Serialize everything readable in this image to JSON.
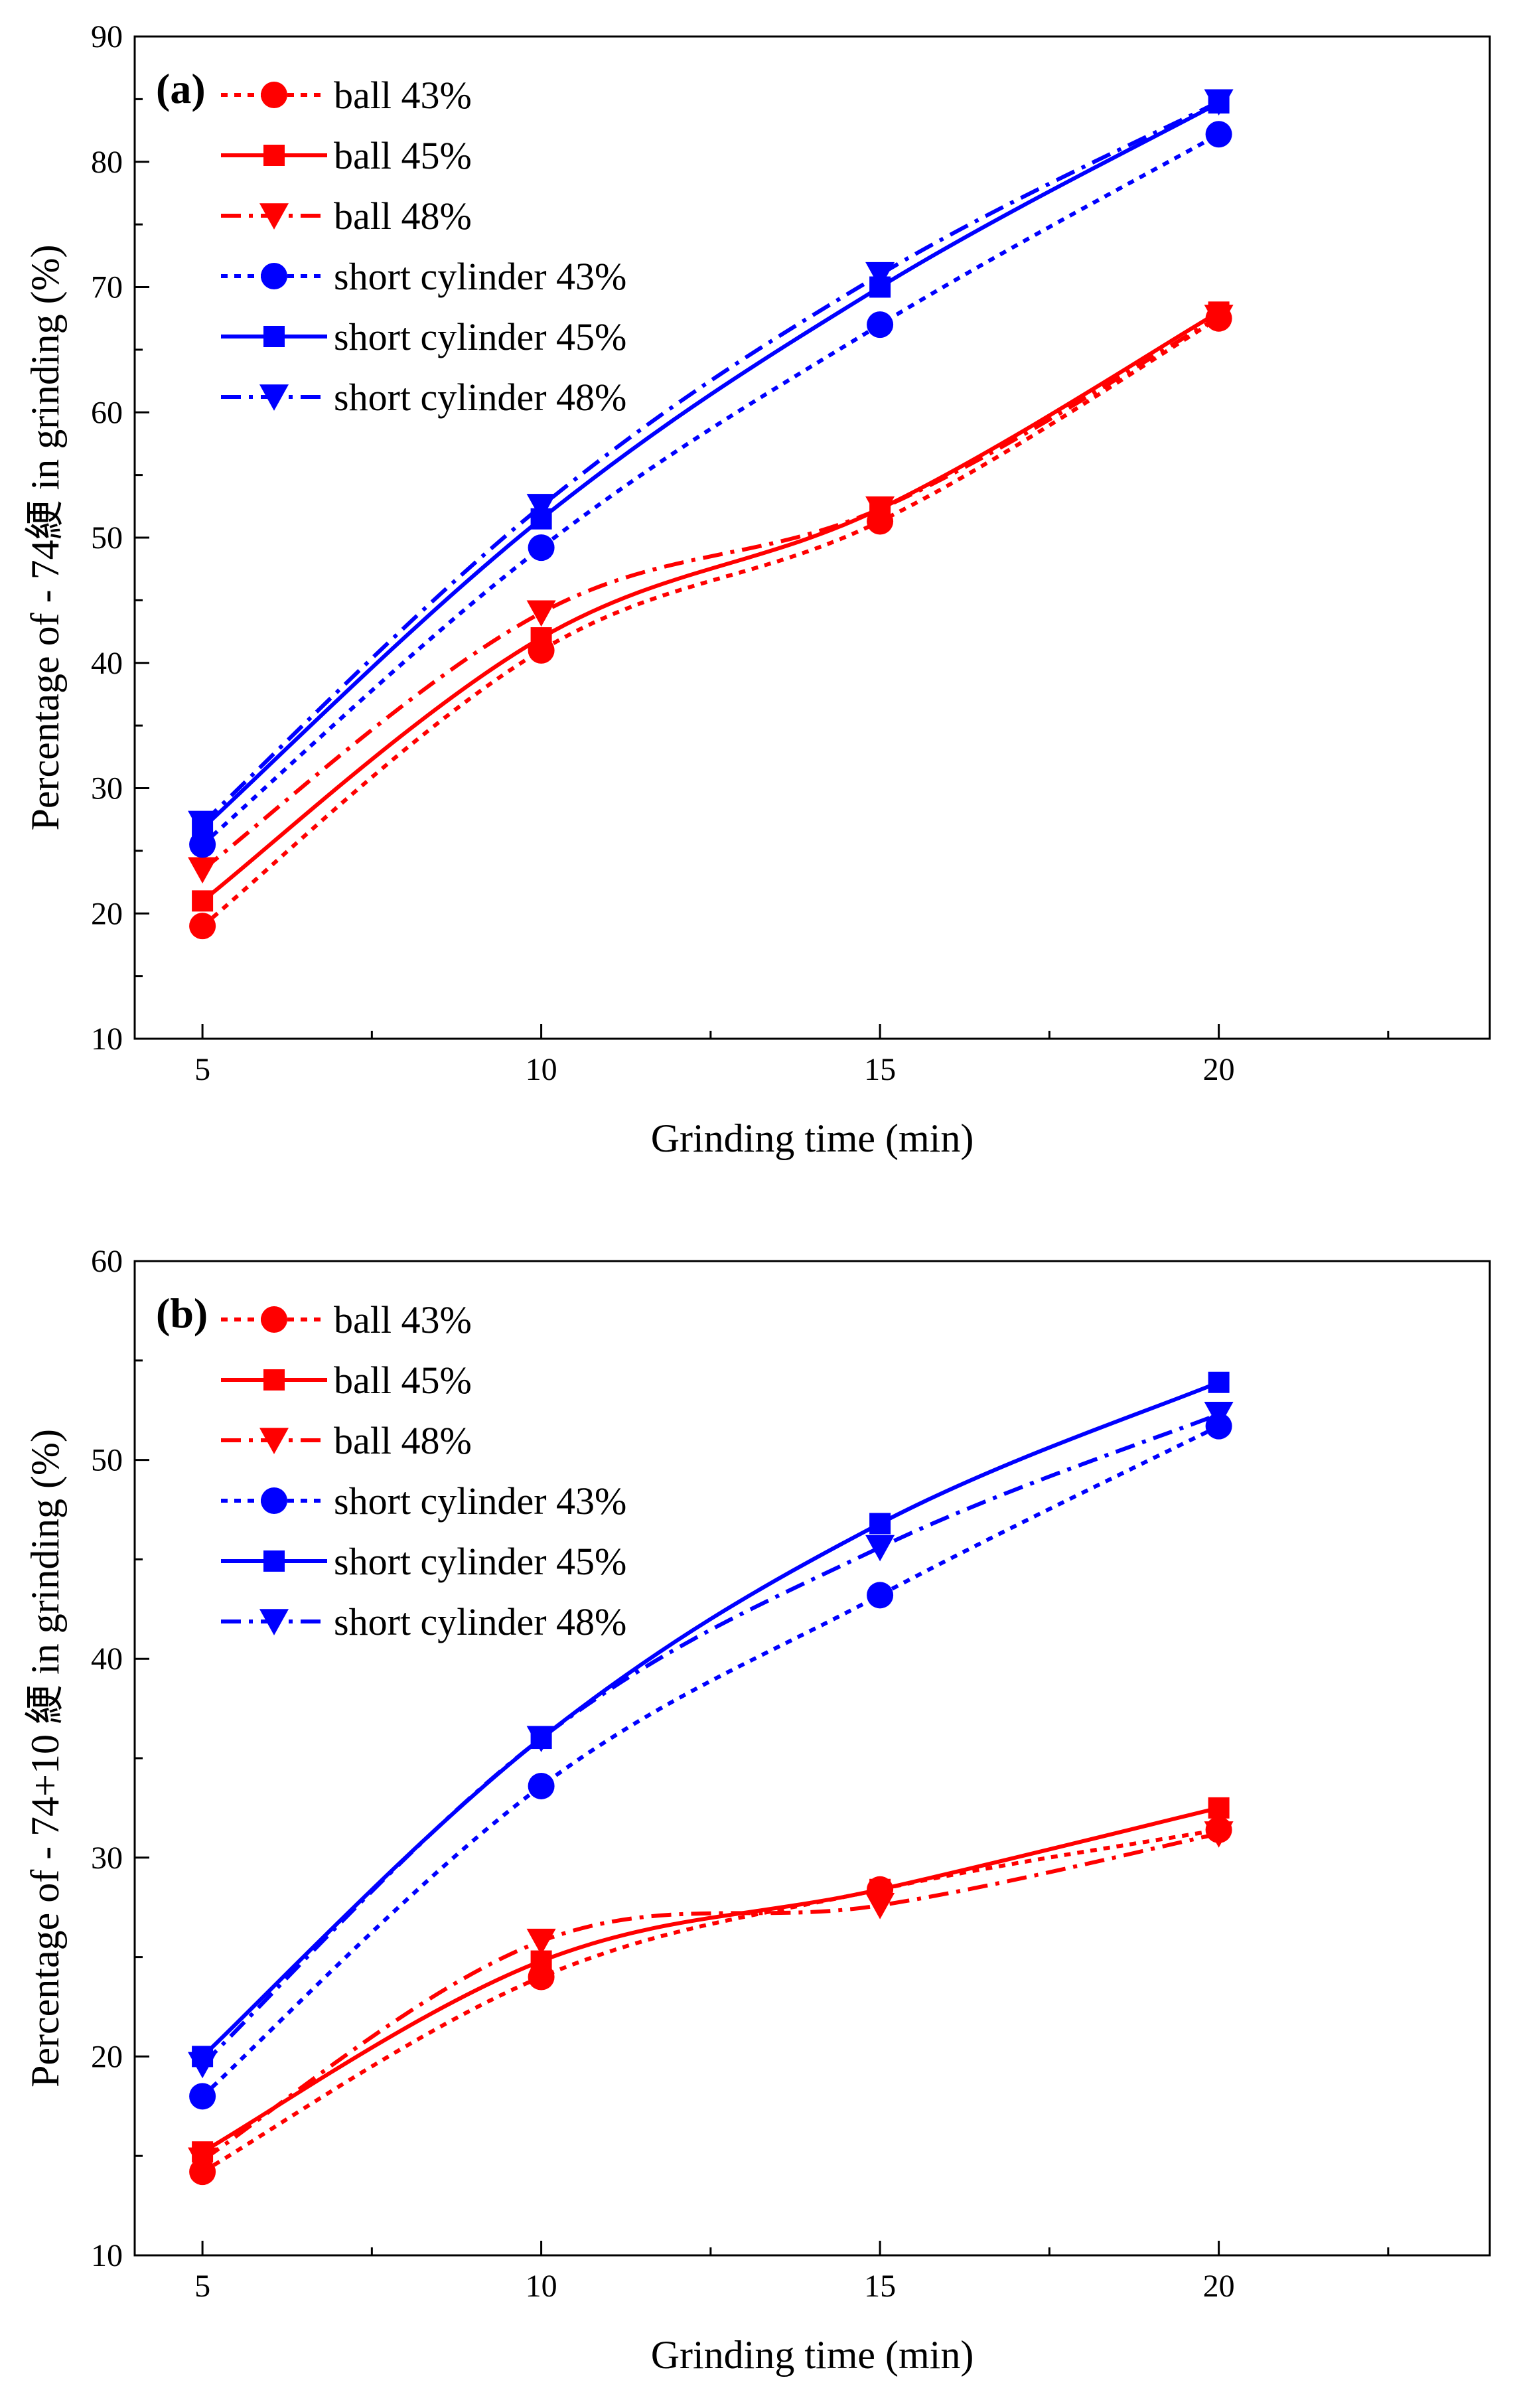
{
  "chart_data": [
    {
      "type": "line",
      "panel_label": "(a)",
      "xlabel": "Grinding time (min)",
      "ylabel": "Percentage of - 74綆  in grinding (%)",
      "x": [
        5,
        10,
        15,
        20
      ],
      "xticks": [
        5,
        10,
        15,
        20
      ],
      "xlim": [
        4,
        24
      ],
      "ylim": [
        10,
        90
      ],
      "yticks": [
        10,
        20,
        30,
        40,
        50,
        60,
        70,
        80,
        90
      ],
      "legend_position": "top-left",
      "series": [
        {
          "name": "ball 43%",
          "color": "#ff0000",
          "dash": "dot",
          "marker": "circle",
          "values": [
            19.0,
            41.0,
            51.3,
            67.5
          ]
        },
        {
          "name": "ball 45%",
          "color": "#ff0000",
          "dash": "solid",
          "marker": "square",
          "values": [
            21.0,
            42.0,
            52.3,
            68.0
          ]
        },
        {
          "name": "ball 48%",
          "color": "#ff0000",
          "dash": "dashdot",
          "marker": "triangle-down",
          "values": [
            23.5,
            44.0,
            52.3,
            67.6
          ]
        },
        {
          "name": "short cylinder 43%",
          "color": "#0000ff",
          "dash": "dot",
          "marker": "circle",
          "values": [
            25.5,
            49.2,
            67.0,
            82.2
          ]
        },
        {
          "name": "short cylinder 45%",
          "color": "#0000ff",
          "dash": "solid",
          "marker": "square",
          "values": [
            26.8,
            51.5,
            70.0,
            84.7
          ]
        },
        {
          "name": "short cylinder 48%",
          "color": "#0000ff",
          "dash": "dashdot",
          "marker": "triangle-down",
          "values": [
            27.2,
            52.5,
            71.0,
            84.8
          ]
        }
      ]
    },
    {
      "type": "line",
      "panel_label": "(b)",
      "xlabel": "Grinding time (min)",
      "ylabel": "Percentage of - 74+10 綆  in grinding (%)",
      "x": [
        5,
        10,
        15,
        20
      ],
      "xticks": [
        5,
        10,
        15,
        20
      ],
      "xlim": [
        4,
        24
      ],
      "ylim": [
        10,
        60
      ],
      "yticks": [
        10,
        20,
        30,
        40,
        50,
        60
      ],
      "legend_position": "top-left",
      "series": [
        {
          "name": "ball 43%",
          "color": "#ff0000",
          "dash": "dot",
          "marker": "circle",
          "values": [
            14.2,
            24.0,
            28.4,
            31.4
          ]
        },
        {
          "name": "ball 45%",
          "color": "#ff0000",
          "dash": "solid",
          "marker": "square",
          "values": [
            15.2,
            24.8,
            28.4,
            32.5
          ]
        },
        {
          "name": "ball 48%",
          "color": "#ff0000",
          "dash": "dashdot",
          "marker": "triangle-down",
          "values": [
            14.8,
            25.8,
            27.6,
            31.2
          ]
        },
        {
          "name": "short cylinder 43%",
          "color": "#0000ff",
          "dash": "dot",
          "marker": "circle",
          "values": [
            18.0,
            33.6,
            43.2,
            51.7
          ]
        },
        {
          "name": "short cylinder 45%",
          "color": "#0000ff",
          "dash": "solid",
          "marker": "square",
          "values": [
            20.0,
            36.0,
            46.8,
            53.9
          ]
        },
        {
          "name": "short cylinder 48%",
          "color": "#0000ff",
          "dash": "dashdot",
          "marker": "triangle-down",
          "values": [
            19.6,
            36.0,
            45.6,
            52.3
          ]
        }
      ]
    }
  ]
}
